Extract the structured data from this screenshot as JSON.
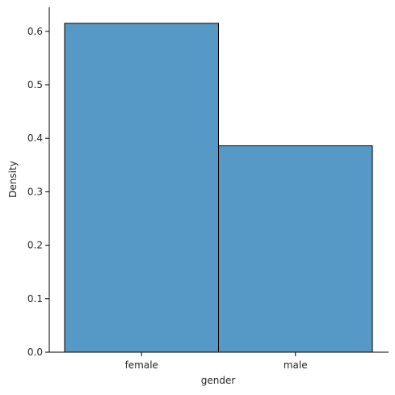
{
  "chart_data": {
    "type": "bar",
    "categories": [
      "female",
      "male"
    ],
    "values": [
      0.615,
      0.386
    ],
    "xlabel": "gender",
    "ylabel": "Density",
    "ylim": [
      0,
      0.645
    ],
    "yticks": [
      "0.0",
      "0.1",
      "0.2",
      "0.3",
      "0.4",
      "0.5",
      "0.6"
    ],
    "ytick_values": [
      0,
      0.1,
      0.2,
      0.3,
      0.4,
      0.5,
      0.6
    ],
    "grid": false,
    "legend": "none",
    "colors": {
      "bar_fill": "#5799c6",
      "bar_edge": "#000000",
      "axis": "#000000"
    }
  }
}
